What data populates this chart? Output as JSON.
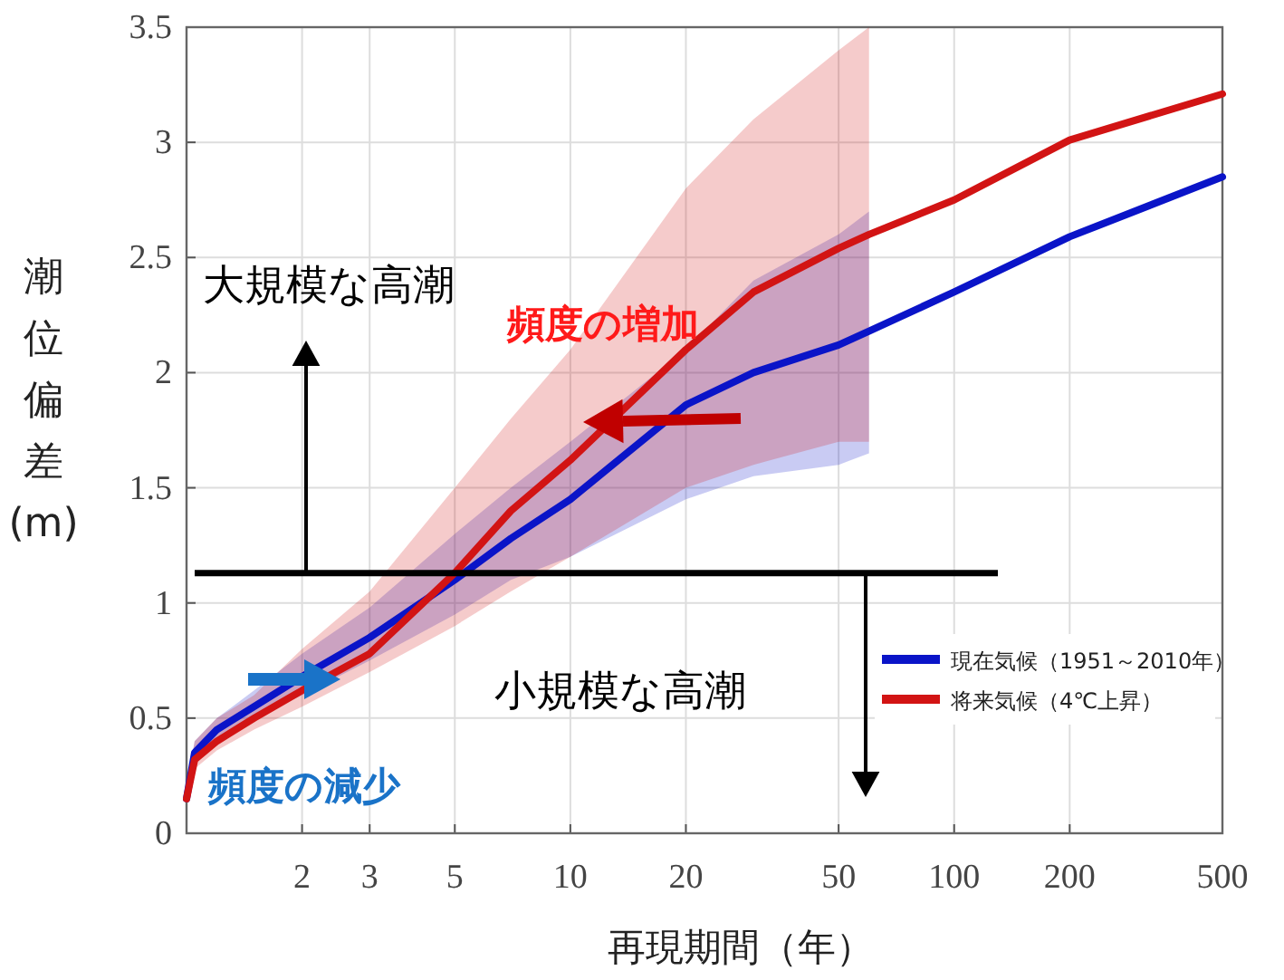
{
  "chart_data": {
    "type": "line",
    "xlabel": "再現期間（年）",
    "ylabel": "潮位偏差(m)",
    "log": "x",
    "x": [
      1,
      1.05,
      1.2,
      1.5,
      2,
      3,
      5,
      7,
      10,
      20,
      30,
      50,
      60,
      100,
      200,
      500
    ],
    "xlim": [
      1,
      500
    ],
    "xticks": [
      2,
      3,
      5,
      10,
      20,
      50,
      100,
      200,
      500
    ],
    "ylim": [
      0,
      3.5
    ],
    "yticks": [
      0,
      0.5,
      1,
      1.5,
      2,
      2.5,
      3,
      3.5
    ],
    "grid": true,
    "legend": "bottom right",
    "line_style": "solid",
    "series": [
      {
        "name": "現在気候（1951～2010年）",
        "color": "#0a14c8",
        "values": [
          0.15,
          0.35,
          0.45,
          0.55,
          0.68,
          0.85,
          1.1,
          1.28,
          1.45,
          1.86,
          2.0,
          2.12,
          2.18,
          2.35,
          2.59,
          2.85
        ],
        "lower": [
          0.15,
          0.3,
          0.4,
          0.5,
          0.6,
          0.75,
          0.95,
          1.1,
          1.2,
          1.45,
          1.55,
          1.6,
          1.65,
          null,
          null,
          null
        ],
        "upper": [
          0.2,
          0.4,
          0.5,
          0.62,
          0.78,
          0.98,
          1.3,
          1.5,
          1.7,
          2.1,
          2.4,
          2.6,
          2.7,
          null,
          null,
          null
        ]
      },
      {
        "name": "将来気候（4℃上昇）",
        "color": "#d21414",
        "values": [
          0.15,
          0.32,
          0.4,
          0.5,
          0.62,
          0.78,
          1.13,
          1.4,
          1.62,
          2.1,
          2.35,
          2.54,
          2.6,
          2.75,
          3.01,
          3.21
        ],
        "lower": [
          0.15,
          0.28,
          0.36,
          0.45,
          0.55,
          0.7,
          0.9,
          1.05,
          1.2,
          1.5,
          1.6,
          1.7,
          1.7,
          null,
          null,
          null
        ],
        "upper": [
          0.2,
          0.4,
          0.5,
          0.6,
          0.8,
          1.05,
          1.5,
          1.8,
          2.1,
          2.8,
          3.1,
          3.4,
          3.5,
          null,
          null,
          null
        ]
      }
    ],
    "ref_lines": [
      {
        "axis": "y",
        "value": 1.13,
        "color": "#000000"
      }
    ],
    "annotations": [
      "大規模な高潮",
      "小規模な高潮",
      "頻度の増加",
      "頻度の減少"
    ]
  }
}
